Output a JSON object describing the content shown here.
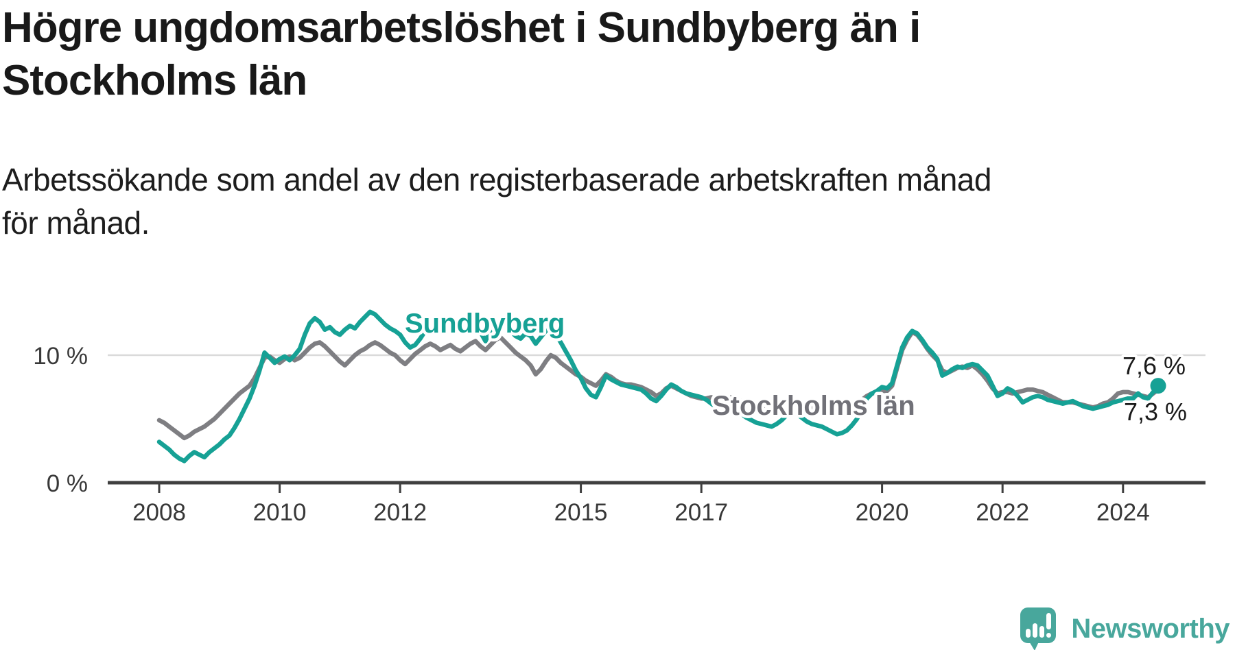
{
  "header": {
    "title": "Högre ungdomsarbetslöshet i Sundbyberg än i Stockholms län",
    "subtitle": "Arbetssökande som andel av den registerbaserade arbetskraften månad för månad."
  },
  "branding": {
    "logo_text": "Newsworthy",
    "logo_icon": "speech-bubble-bar-chart",
    "brand_color": "#48a79c"
  },
  "colors": {
    "sundbyberg_teal": "#16a195",
    "stockholm_gray": "#7e7e82",
    "axis_line": "#3f3f3f",
    "axis_text": "#383838",
    "gridline": "#dadada",
    "value_label_text": "#1a1a1a"
  },
  "chart_data": {
    "type": "line",
    "title": "Högre ungdomsarbetslöshet i Sundbyberg än i Stockholms län",
    "subtitle": "Arbetssökande som andel av den registerbaserade arbetskraften månad för månad.",
    "unit": "%",
    "frequency": "monthly",
    "x_start": "2008-01",
    "x_end": "2024-08",
    "x_axis": {
      "tick_years": [
        2008,
        2010,
        2012,
        2015,
        2017,
        2020,
        2022,
        2024
      ]
    },
    "y_axis": {
      "ticks": [
        {
          "value": 0,
          "label": "0 %"
        },
        {
          "value": 10,
          "label": "10 %"
        }
      ],
      "gridline_value": 10,
      "ylim": [
        0,
        15.8
      ]
    },
    "legend_position": "inline-labels",
    "grid": "horizontal-single",
    "series": [
      {
        "name": "Sundbyberg",
        "color": "#16a195",
        "end_label": "7,6 %",
        "end_value": 7.6,
        "values": [
          3.2,
          2.9,
          2.6,
          2.2,
          1.9,
          1.7,
          2.1,
          2.4,
          2.2,
          2.0,
          2.4,
          2.7,
          3.0,
          3.4,
          3.7,
          4.3,
          5.0,
          5.8,
          6.6,
          7.6,
          8.8,
          10.2,
          9.8,
          9.4,
          9.7,
          9.9,
          9.6,
          10.0,
          10.5,
          11.6,
          12.5,
          12.9,
          12.6,
          12.0,
          12.2,
          11.8,
          11.6,
          12.0,
          12.3,
          12.1,
          12.6,
          13.0,
          13.4,
          13.2,
          12.8,
          12.4,
          12.1,
          11.9,
          11.6,
          11.0,
          10.6,
          10.8,
          11.3,
          11.9,
          12.3,
          12.2,
          12.0,
          12.2,
          12.4,
          12.1,
          11.9,
          12.2,
          12.6,
          12.8,
          11.8,
          11.1,
          12.0,
          12.6,
          12.4,
          12.2,
          11.9,
          11.5,
          11.3,
          11.7,
          11.5,
          10.9,
          11.4,
          11.9,
          12.0,
          11.6,
          11.0,
          10.3,
          9.6,
          8.8,
          8.2,
          7.4,
          6.9,
          6.7,
          7.5,
          8.4,
          8.1,
          7.9,
          7.7,
          7.6,
          7.5,
          7.4,
          7.3,
          7.0,
          6.6,
          6.4,
          6.8,
          7.3,
          7.7,
          7.5,
          7.2,
          7.0,
          6.9,
          6.8,
          6.7,
          6.5,
          6.2,
          5.9,
          5.6,
          5.9,
          6.1,
          5.8,
          5.4,
          5.1,
          4.9,
          4.7,
          4.6,
          4.5,
          4.4,
          4.6,
          4.9,
          5.3,
          5.6,
          5.4,
          5.1,
          4.8,
          4.6,
          4.5,
          4.4,
          4.2,
          4.0,
          3.8,
          3.9,
          4.1,
          4.5,
          5.0,
          5.8,
          6.6,
          7.0,
          7.2,
          7.5,
          7.4,
          7.8,
          9.2,
          10.6,
          11.4,
          11.9,
          11.7,
          11.2,
          10.6,
          10.2,
          9.7,
          8.4,
          8.6,
          8.9,
          9.1,
          9.0,
          9.2,
          9.3,
          9.2,
          8.8,
          8.4,
          7.6,
          6.8,
          7.0,
          7.4,
          7.2,
          6.8,
          6.3,
          6.5,
          6.7,
          6.8,
          6.7,
          6.5,
          6.4,
          6.3,
          6.2,
          6.3,
          6.4,
          6.2,
          6.0,
          5.9,
          5.8,
          5.9,
          6.0,
          6.1,
          6.3,
          6.4,
          6.5,
          6.6,
          6.6,
          7.0,
          6.7,
          6.6,
          7.1,
          7.6
        ]
      },
      {
        "name": "Stockholms län",
        "color": "#7e7e82",
        "label_color": "#717178",
        "end_label": "7,3 %",
        "end_value": 7.3,
        "values": [
          4.9,
          4.7,
          4.4,
          4.1,
          3.8,
          3.5,
          3.7,
          4.0,
          4.2,
          4.4,
          4.7,
          5.0,
          5.4,
          5.8,
          6.2,
          6.6,
          7.0,
          7.3,
          7.6,
          8.2,
          9.0,
          9.8,
          9.9,
          9.6,
          9.4,
          9.7,
          9.9,
          9.6,
          9.8,
          10.2,
          10.6,
          10.9,
          11.0,
          10.7,
          10.3,
          9.9,
          9.5,
          9.2,
          9.6,
          10.0,
          10.3,
          10.5,
          10.8,
          11.0,
          10.8,
          10.5,
          10.2,
          10.0,
          9.6,
          9.3,
          9.7,
          10.1,
          10.4,
          10.7,
          10.9,
          10.7,
          10.4,
          10.6,
          10.8,
          10.5,
          10.3,
          10.6,
          10.9,
          11.1,
          10.7,
          10.4,
          10.8,
          11.2,
          11.4,
          11.0,
          10.6,
          10.2,
          9.9,
          9.6,
          9.2,
          8.5,
          8.9,
          9.5,
          10.0,
          9.8,
          9.4,
          9.1,
          8.8,
          8.5,
          8.3,
          8.0,
          7.8,
          7.6,
          8.0,
          8.5,
          8.3,
          8.0,
          7.8,
          7.7,
          7.7,
          7.6,
          7.5,
          7.3,
          7.1,
          6.8,
          7.0,
          7.4,
          7.6,
          7.4,
          7.2,
          7.0,
          6.8,
          6.7,
          6.6,
          6.6,
          6.7,
          6.5,
          6.3,
          6.5,
          6.7,
          6.6,
          6.4,
          6.3,
          6.2,
          6.2,
          6.1,
          6.0,
          5.9,
          6.0,
          6.1,
          6.3,
          6.4,
          6.3,
          6.1,
          6.0,
          5.9,
          5.9,
          5.9,
          5.8,
          5.8,
          5.8,
          5.9,
          6.0,
          6.2,
          6.3,
          6.5,
          6.8,
          7.0,
          7.1,
          7.2,
          7.2,
          7.6,
          9.0,
          10.4,
          11.2,
          11.8,
          11.6,
          11.1,
          10.5,
          10.0,
          9.6,
          8.8,
          8.6,
          8.8,
          9.0,
          9.1,
          9.0,
          9.2,
          8.9,
          8.5,
          8.0,
          7.4,
          7.0,
          7.1,
          7.1,
          7.0,
          7.1,
          7.2,
          7.3,
          7.3,
          7.2,
          7.1,
          6.9,
          6.7,
          6.5,
          6.3,
          6.3,
          6.3,
          6.2,
          6.1,
          6.0,
          5.9,
          6.0,
          6.2,
          6.3,
          6.6,
          7.0,
          7.1,
          7.1,
          7.0,
          6.9,
          6.8,
          6.7,
          7.0,
          7.3
        ]
      }
    ]
  }
}
